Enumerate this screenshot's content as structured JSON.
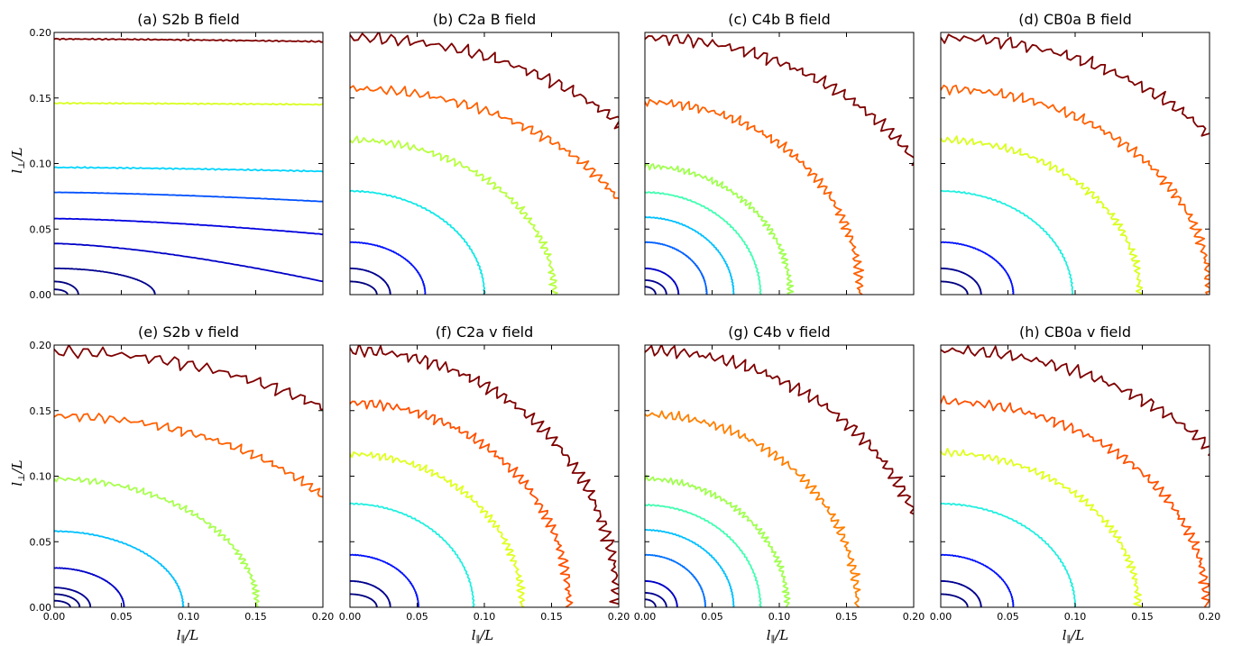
{
  "figure": {
    "xlabel_main": "l",
    "xlabel_sub": "∥",
    "xlabel_tail": "/L",
    "ylabel_main": "l",
    "ylabel_sub": "⊥",
    "ylabel_tail": "/L"
  },
  "chart_data": [
    {
      "type": "line",
      "title": "(a) S2b B field",
      "xlim": [
        0,
        0.2
      ],
      "ylim": [
        0,
        0.2
      ],
      "x_ticks": [
        "0.00",
        "0.05",
        "0.10",
        "0.15",
        "0.20"
      ],
      "y_ticks": [
        "0.00",
        "0.05",
        "0.10",
        "0.15",
        "0.20"
      ],
      "shape": "horizontal",
      "series": [
        {
          "color": "#00007f",
          "level": 0,
          "y0": 0.004,
          "x0": 0.01,
          "tilt": 0
        },
        {
          "color": "#00007f",
          "level": 1,
          "y0": 0.01,
          "x0": 0.018,
          "tilt": 0
        },
        {
          "color": "#00008f",
          "level": 2,
          "y0": 0.02,
          "x0": 0.075,
          "tilt": 0
        },
        {
          "color": "#0000c8",
          "level": 3,
          "y0": 0.039,
          "x0": 0.2,
          "tilt": 0.029
        },
        {
          "color": "#0000e0",
          "level": 4,
          "y0": 0.058,
          "x0": 0.2,
          "tilt": 0.012
        },
        {
          "color": "#0050ff",
          "level": 5,
          "y0": 0.078,
          "x0": 0.2,
          "tilt": 0.007
        },
        {
          "color": "#00d4ff",
          "level": 6,
          "y0": 0.097,
          "x0": 0.2,
          "tilt": 0.003
        },
        {
          "color": "#d8ff1e",
          "level": 7,
          "y0": 0.146,
          "x0": 0.2,
          "tilt": 0.001
        },
        {
          "color": "#7f0000",
          "level": 8,
          "y0": 0.195,
          "x0": 0.2,
          "tilt": 0.002
        }
      ]
    },
    {
      "type": "line",
      "title": "(b) C2a B field",
      "xlim": [
        0,
        0.2
      ],
      "ylim": [
        0,
        0.2
      ],
      "x_ticks": [
        "0.00",
        "0.05",
        "0.10",
        "0.15",
        "0.20"
      ],
      "y_ticks": [
        "0.00",
        "0.05",
        "0.10",
        "0.15",
        "0.20"
      ],
      "shape": "ellipse",
      "series": [
        {
          "color": "#00007f",
          "x0": 0.02,
          "y0": 0.01
        },
        {
          "color": "#00008f",
          "x0": 0.03,
          "y0": 0.02
        },
        {
          "color": "#0010ff",
          "x0": 0.056,
          "y0": 0.04
        },
        {
          "color": "#10e8e8",
          "x0": 0.1,
          "y0": 0.079
        },
        {
          "color": "#b8ff40",
          "x0": 0.152,
          "y0": 0.118
        },
        {
          "color": "#ff6000",
          "x0": 0.225,
          "y0": 0.157
        },
        {
          "color": "#7f0000",
          "x0": 0.27,
          "y0": 0.196
        }
      ]
    },
    {
      "type": "line",
      "title": "(c) C4b B field",
      "xlim": [
        0,
        0.2
      ],
      "ylim": [
        0,
        0.2
      ],
      "x_ticks": [
        "0.00",
        "0.05",
        "0.10",
        "0.15",
        "0.20"
      ],
      "y_ticks": [
        "0.00",
        "0.05",
        "0.10",
        "0.15",
        "0.20"
      ],
      "shape": "ellipse",
      "series": [
        {
          "color": "#00007f",
          "x0": 0.008,
          "y0": 0.006
        },
        {
          "color": "#00008f",
          "x0": 0.016,
          "y0": 0.011
        },
        {
          "color": "#0000c8",
          "x0": 0.025,
          "y0": 0.02
        },
        {
          "color": "#0060ff",
          "x0": 0.046,
          "y0": 0.04
        },
        {
          "color": "#00c0ff",
          "x0": 0.066,
          "y0": 0.059
        },
        {
          "color": "#40ffb0",
          "x0": 0.086,
          "y0": 0.078
        },
        {
          "color": "#a0ff50",
          "x0": 0.108,
          "y0": 0.098
        },
        {
          "color": "#ff6000",
          "x0": 0.16,
          "y0": 0.147
        },
        {
          "color": "#7f0000",
          "x0": 0.235,
          "y0": 0.196
        }
      ]
    },
    {
      "type": "line",
      "title": "(d) CB0a B field",
      "xlim": [
        0,
        0.2
      ],
      "ylim": [
        0,
        0.2
      ],
      "x_ticks": [
        "0.00",
        "0.05",
        "0.10",
        "0.15",
        "0.20"
      ],
      "y_ticks": [
        "0.00",
        "0.05",
        "0.10",
        "0.15",
        "0.20"
      ],
      "shape": "ellipse",
      "series": [
        {
          "color": "#00007f",
          "x0": 0.02,
          "y0": 0.01
        },
        {
          "color": "#00008f",
          "x0": 0.03,
          "y0": 0.02
        },
        {
          "color": "#0010ff",
          "x0": 0.054,
          "y0": 0.04
        },
        {
          "color": "#20f0e0",
          "x0": 0.098,
          "y0": 0.079
        },
        {
          "color": "#d8ff1e",
          "x0": 0.148,
          "y0": 0.118
        },
        {
          "color": "#ff6000",
          "x0": 0.2,
          "y0": 0.157
        },
        {
          "color": "#7f0000",
          "x0": 0.255,
          "y0": 0.196
        }
      ]
    },
    {
      "type": "line",
      "title": "(e) S2b v field",
      "xlim": [
        0,
        0.2
      ],
      "ylim": [
        0,
        0.2
      ],
      "x_ticks": [
        "0.00",
        "0.05",
        "0.10",
        "0.15",
        "0.20"
      ],
      "y_ticks": [
        "0.00",
        "0.05",
        "0.10",
        "0.15",
        "0.20"
      ],
      "shape": "ellipse",
      "series": [
        {
          "color": "#00007f",
          "x0": 0.012,
          "y0": 0.005
        },
        {
          "color": "#00007f",
          "x0": 0.019,
          "y0": 0.01
        },
        {
          "color": "#00008f",
          "x0": 0.027,
          "y0": 0.015
        },
        {
          "color": "#0000c8",
          "x0": 0.052,
          "y0": 0.03
        },
        {
          "color": "#00c0ff",
          "x0": 0.096,
          "y0": 0.058
        },
        {
          "color": "#a8ff50",
          "x0": 0.151,
          "y0": 0.098
        },
        {
          "color": "#ff6000",
          "x0": 0.245,
          "y0": 0.146
        },
        {
          "color": "#7f0000",
          "x0": 0.32,
          "y0": 0.195
        }
      ]
    },
    {
      "type": "line",
      "title": "(f) C2a v field",
      "xlim": [
        0,
        0.2
      ],
      "ylim": [
        0,
        0.2
      ],
      "x_ticks": [
        "0.00",
        "0.05",
        "0.10",
        "0.15",
        "0.20"
      ],
      "y_ticks": [
        "0.00",
        "0.05",
        "0.10",
        "0.15",
        "0.20"
      ],
      "shape": "ellipse",
      "series": [
        {
          "color": "#00007f",
          "x0": 0.02,
          "y0": 0.01
        },
        {
          "color": "#00008f",
          "x0": 0.03,
          "y0": 0.02
        },
        {
          "color": "#0010ff",
          "x0": 0.051,
          "y0": 0.04
        },
        {
          "color": "#20f0e0",
          "x0": 0.092,
          "y0": 0.079
        },
        {
          "color": "#e0ff20",
          "x0": 0.128,
          "y0": 0.117
        },
        {
          "color": "#ff5000",
          "x0": 0.163,
          "y0": 0.156
        },
        {
          "color": "#7f0000",
          "x0": 0.199,
          "y0": 0.196
        }
      ]
    },
    {
      "type": "line",
      "title": "(g) C4b v field",
      "xlim": [
        0,
        0.2
      ],
      "ylim": [
        0,
        0.2
      ],
      "x_ticks": [
        "0.00",
        "0.05",
        "0.10",
        "0.15",
        "0.20"
      ],
      "y_ticks": [
        "0.00",
        "0.05",
        "0.10",
        "0.15",
        "0.20"
      ],
      "shape": "ellipse",
      "series": [
        {
          "color": "#00007f",
          "x0": 0.008,
          "y0": 0.006
        },
        {
          "color": "#00008f",
          "x0": 0.016,
          "y0": 0.011
        },
        {
          "color": "#0000c8",
          "x0": 0.024,
          "y0": 0.02
        },
        {
          "color": "#0070ff",
          "x0": 0.045,
          "y0": 0.04
        },
        {
          "color": "#00c0ff",
          "x0": 0.066,
          "y0": 0.059
        },
        {
          "color": "#40ffb0",
          "x0": 0.086,
          "y0": 0.078
        },
        {
          "color": "#a0ff50",
          "x0": 0.106,
          "y0": 0.098
        },
        {
          "color": "#ff8000",
          "x0": 0.158,
          "y0": 0.147
        },
        {
          "color": "#7f0000",
          "x0": 0.215,
          "y0": 0.196
        }
      ]
    },
    {
      "type": "line",
      "title": "(h) CB0a v field",
      "xlim": [
        0,
        0.2
      ],
      "ylim": [
        0,
        0.2
      ],
      "x_ticks": [
        "0.00",
        "0.05",
        "0.10",
        "0.15",
        "0.20"
      ],
      "y_ticks": [
        "0.00",
        "0.05",
        "0.10",
        "0.15",
        "0.20"
      ],
      "shape": "ellipse",
      "series": [
        {
          "color": "#00007f",
          "x0": 0.02,
          "y0": 0.01
        },
        {
          "color": "#00008f",
          "x0": 0.03,
          "y0": 0.02
        },
        {
          "color": "#0010ff",
          "x0": 0.054,
          "y0": 0.04
        },
        {
          "color": "#20f0e0",
          "x0": 0.1,
          "y0": 0.079
        },
        {
          "color": "#e0ff20",
          "x0": 0.147,
          "y0": 0.118
        },
        {
          "color": "#ff5000",
          "x0": 0.198,
          "y0": 0.157
        },
        {
          "color": "#7f0000",
          "x0": 0.255,
          "y0": 0.196
        }
      ]
    }
  ]
}
